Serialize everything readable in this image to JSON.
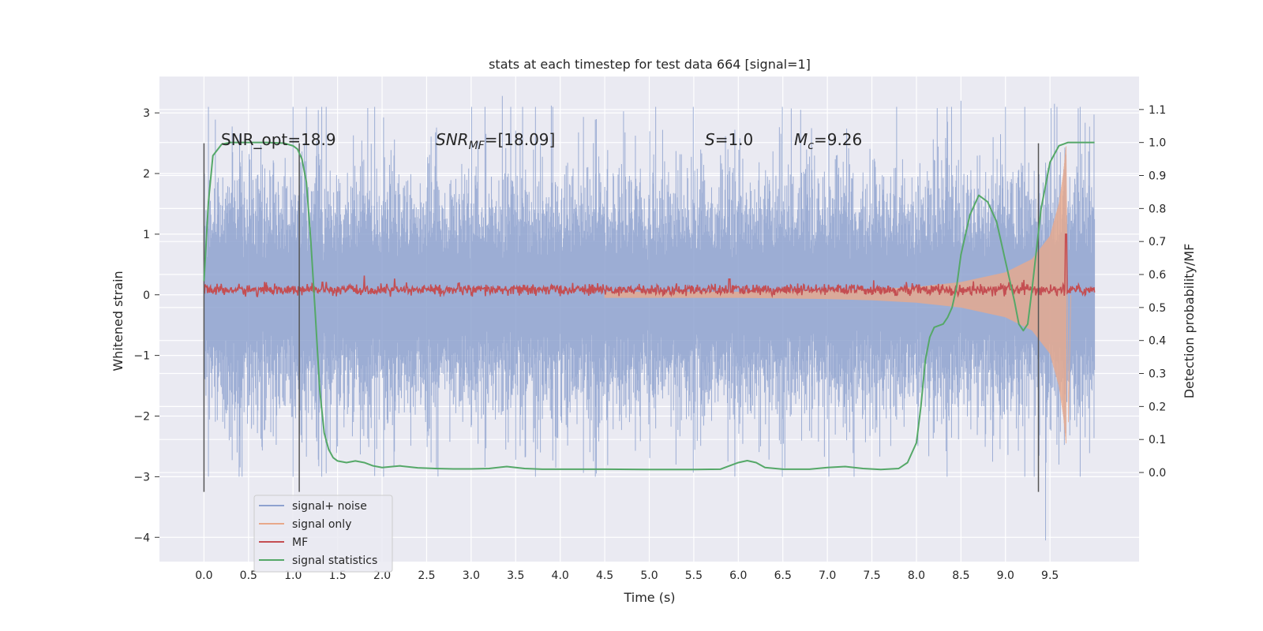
{
  "chart_data": {
    "type": "line",
    "title": "stats at each timestep for test data 664 [signal=1]",
    "xlabel": "Time (s)",
    "ylabel": "Whitened strain",
    "ylabel_right": "Detection probability/MF",
    "xlim": [
      -0.5,
      10.5
    ],
    "ylim": [
      -4.4,
      3.6
    ],
    "ylim_right": [
      -0.27,
      1.2
    ],
    "xticks": [
      "0.0",
      "0.5",
      "1.0",
      "1.5",
      "2.0",
      "2.5",
      "3.0",
      "3.5",
      "4.0",
      "4.5",
      "5.0",
      "5.5",
      "6.0",
      "6.5",
      "7.0",
      "7.5",
      "8.0",
      "8.5",
      "9.0",
      "9.5"
    ],
    "yticks_left": [
      "3",
      "2",
      "1",
      "0",
      "−1",
      "−2",
      "−3",
      "−4"
    ],
    "yticks_right": [
      "1.1",
      "1.0",
      "0.9",
      "0.8",
      "0.7",
      "0.6",
      "0.5",
      "0.4",
      "0.3",
      "0.2",
      "0.1",
      "0.0"
    ],
    "grid": true,
    "legend_position": "lower-left",
    "annotations": {
      "snr_opt": "SNR_opt=18.9",
      "snr_mf_main": "SNR",
      "snr_mf_sub": "MF",
      "snr_mf_value": "=[18.09]",
      "s_main": "S",
      "s_value": "=1.0",
      "mc_main": "M",
      "mc_sub": "c",
      "mc_value": "=9.26"
    },
    "series": [
      {
        "name": "signal+ noise",
        "color": "#8ea2cf",
        "axis": "left",
        "x_range": [
          0.0,
          10.0
        ],
        "envelope_typical": [
          -1.3,
          1.3
        ],
        "envelope_extreme": [
          -4.05,
          3.28
        ],
        "spikes": [
          [
            1.0,
            2.9
          ],
          [
            1.5,
            -2.5
          ],
          [
            3.35,
            3.28
          ],
          [
            3.9,
            3.12
          ],
          [
            3.95,
            -2.85
          ],
          [
            5.3,
            -2.8
          ],
          [
            6.7,
            3.05
          ],
          [
            7.3,
            -3.0
          ],
          [
            8.5,
            3.2
          ],
          [
            9.0,
            3.1
          ],
          [
            9.45,
            -4.05
          ],
          [
            9.55,
            3.15
          ],
          [
            9.6,
            -2.8
          ]
        ]
      },
      {
        "name": "signal only",
        "color": "#e8a98b",
        "axis": "left",
        "t_merger": 9.68,
        "peak_amplitude": 2.45,
        "points": [
          [
            6.0,
            0.05
          ],
          [
            7.0,
            0.07
          ],
          [
            7.5,
            0.09
          ],
          [
            8.0,
            0.13
          ],
          [
            8.5,
            0.21
          ],
          [
            9.0,
            0.37
          ],
          [
            9.3,
            0.59
          ],
          [
            9.5,
            0.97
          ],
          [
            9.6,
            1.5
          ],
          [
            9.65,
            2.0
          ],
          [
            9.68,
            2.45
          ]
        ]
      },
      {
        "name": "MF",
        "color": "#c44e52",
        "axis": "left",
        "baseline": 0.08,
        "peak": {
          "x": 9.68,
          "y": 1.0
        },
        "bumps": [
          [
            5.9,
            0.26
          ]
        ]
      },
      {
        "name": "signal statistics",
        "color": "#55a868",
        "axis": "right",
        "points": [
          [
            0.0,
            0.58
          ],
          [
            0.05,
            0.82
          ],
          [
            0.1,
            0.96
          ],
          [
            0.2,
            0.995
          ],
          [
            0.3,
            1.0
          ],
          [
            0.5,
            1.0
          ],
          [
            0.7,
            1.0
          ],
          [
            0.9,
            0.998
          ],
          [
            1.0,
            0.99
          ],
          [
            1.05,
            0.98
          ],
          [
            1.1,
            0.95
          ],
          [
            1.15,
            0.88
          ],
          [
            1.2,
            0.7
          ],
          [
            1.25,
            0.48
          ],
          [
            1.3,
            0.25
          ],
          [
            1.35,
            0.12
          ],
          [
            1.4,
            0.07
          ],
          [
            1.45,
            0.045
          ],
          [
            1.5,
            0.035
          ],
          [
            1.6,
            0.03
          ],
          [
            1.7,
            0.035
          ],
          [
            1.8,
            0.03
          ],
          [
            1.9,
            0.02
          ],
          [
            2.0,
            0.015
          ],
          [
            2.2,
            0.02
          ],
          [
            2.4,
            0.014
          ],
          [
            2.6,
            0.012
          ],
          [
            2.8,
            0.011
          ],
          [
            3.0,
            0.011
          ],
          [
            3.2,
            0.012
          ],
          [
            3.4,
            0.018
          ],
          [
            3.6,
            0.012
          ],
          [
            3.8,
            0.01
          ],
          [
            4.0,
            0.01
          ],
          [
            4.5,
            0.01
          ],
          [
            5.0,
            0.009
          ],
          [
            5.5,
            0.009
          ],
          [
            5.8,
            0.01
          ],
          [
            6.0,
            0.03
          ],
          [
            6.1,
            0.036
          ],
          [
            6.2,
            0.03
          ],
          [
            6.3,
            0.015
          ],
          [
            6.5,
            0.01
          ],
          [
            6.8,
            0.01
          ],
          [
            7.0,
            0.015
          ],
          [
            7.2,
            0.018
          ],
          [
            7.4,
            0.012
          ],
          [
            7.6,
            0.009
          ],
          [
            7.8,
            0.012
          ],
          [
            7.9,
            0.03
          ],
          [
            8.0,
            0.09
          ],
          [
            8.05,
            0.2
          ],
          [
            8.1,
            0.34
          ],
          [
            8.15,
            0.41
          ],
          [
            8.2,
            0.44
          ],
          [
            8.3,
            0.45
          ],
          [
            8.35,
            0.47
          ],
          [
            8.4,
            0.5
          ],
          [
            8.45,
            0.56
          ],
          [
            8.5,
            0.66
          ],
          [
            8.6,
            0.78
          ],
          [
            8.7,
            0.84
          ],
          [
            8.8,
            0.82
          ],
          [
            8.9,
            0.76
          ],
          [
            9.0,
            0.64
          ],
          [
            9.1,
            0.52
          ],
          [
            9.15,
            0.45
          ],
          [
            9.2,
            0.43
          ],
          [
            9.25,
            0.45
          ],
          [
            9.3,
            0.56
          ],
          [
            9.4,
            0.8
          ],
          [
            9.5,
            0.94
          ],
          [
            9.6,
            0.99
          ],
          [
            9.7,
            1.0
          ],
          [
            9.8,
            1.0
          ],
          [
            10.0,
            1.0
          ]
        ]
      }
    ],
    "markers": [
      0.0,
      1.07,
      9.37
    ]
  }
}
